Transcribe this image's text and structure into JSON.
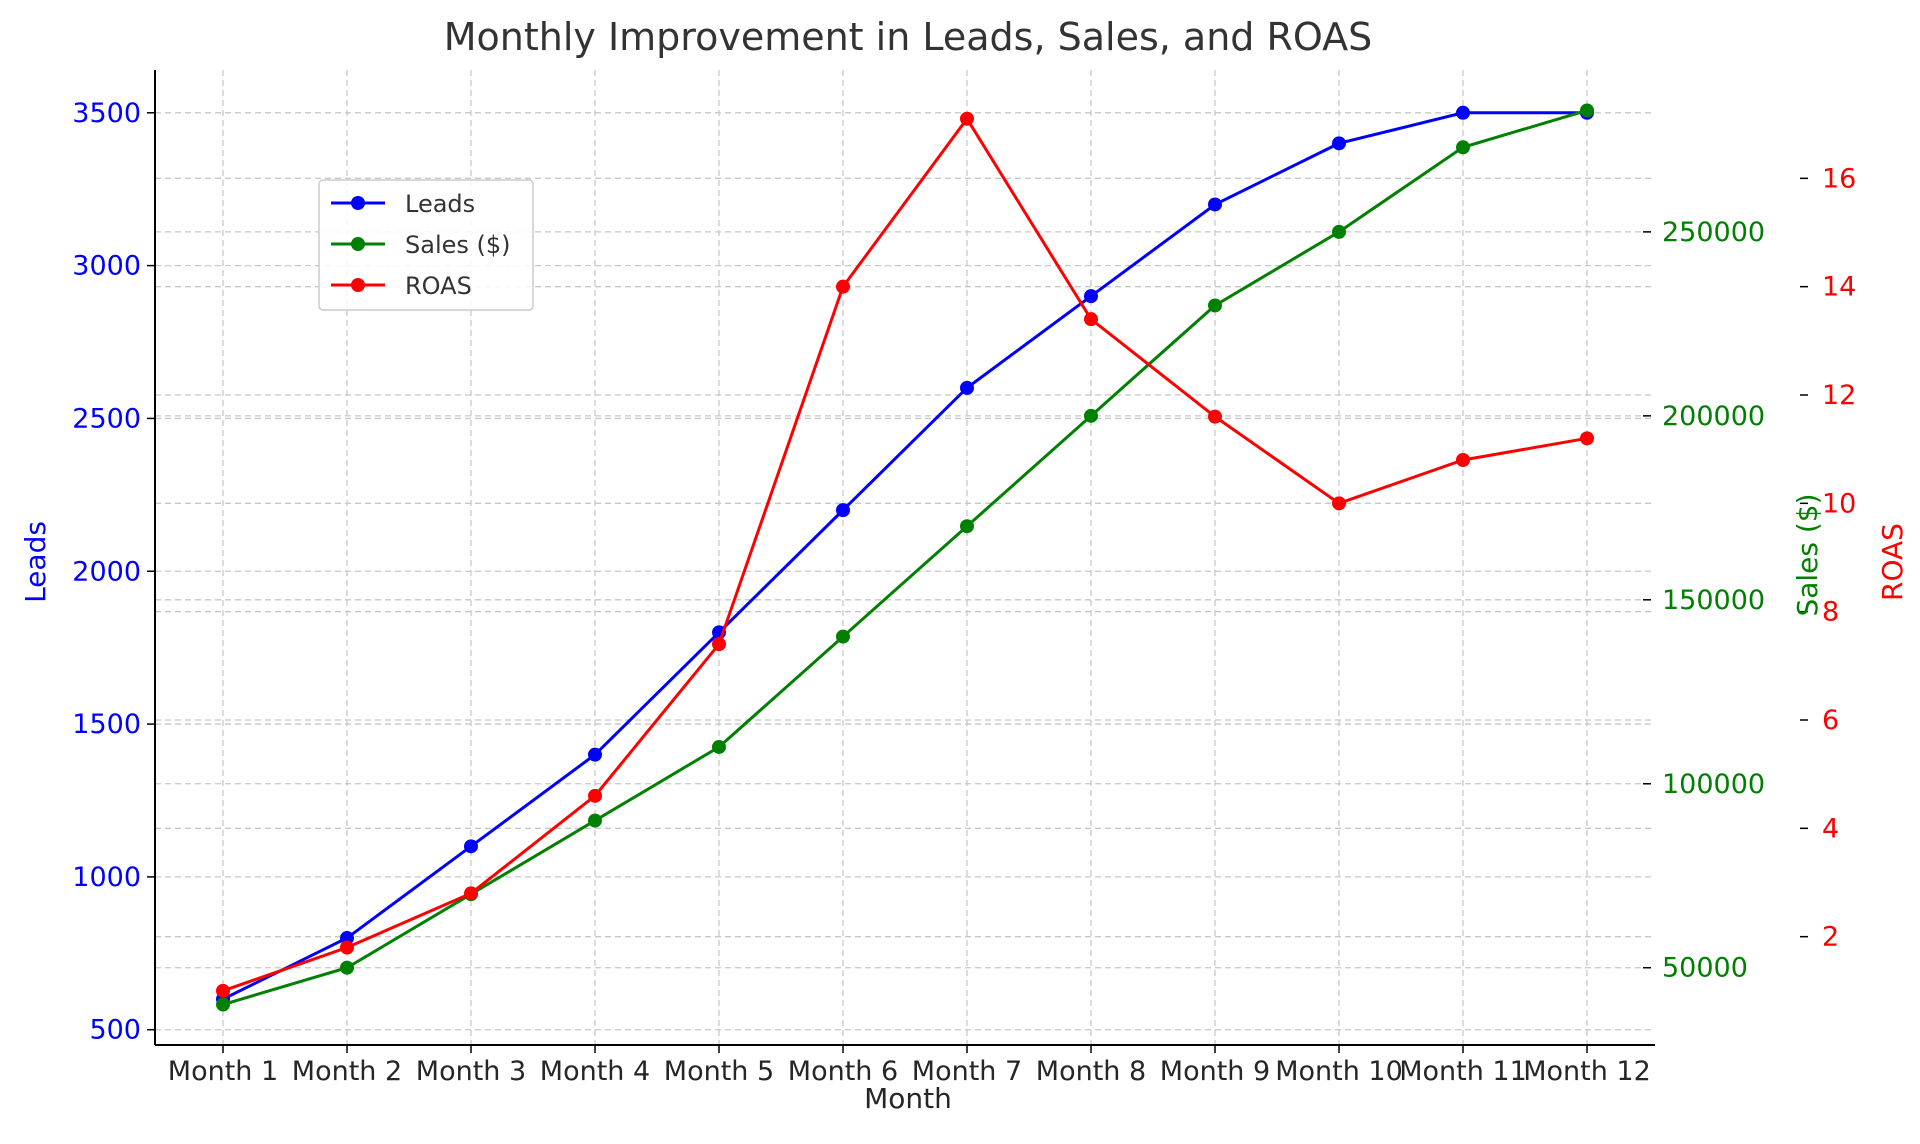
{
  "chart_data": {
    "type": "line",
    "title": "Monthly Improvement in Leads, Sales, and ROAS",
    "xlabel": "Month",
    "categories": [
      "Month 1",
      "Month 2",
      "Month 3",
      "Month 4",
      "Month 5",
      "Month 6",
      "Month 7",
      "Month 8",
      "Month 9",
      "Month 10",
      "Month 11",
      "Month 12"
    ],
    "grid": true,
    "legend_position": "upper-left",
    "axes": {
      "left": {
        "label": "Leads",
        "color": "#0000ff",
        "ticks": [
          500,
          1000,
          1500,
          2000,
          2500,
          3000,
          3500
        ],
        "range": [
          450,
          3640
        ]
      },
      "right1": {
        "label": "Sales ($)",
        "color": "#008000",
        "ticks": [
          50000,
          100000,
          150000,
          200000,
          250000
        ],
        "range": [
          29000,
          294000
        ]
      },
      "right2": {
        "label": "ROAS",
        "color": "#ff0000",
        "ticks": [
          2,
          4,
          6,
          8,
          10,
          12,
          14,
          16
        ],
        "range": [
          0.0,
          18.0
        ]
      }
    },
    "series": [
      {
        "name": "Leads",
        "axis": "left",
        "color": "#0000ff",
        "values": [
          600,
          800,
          1100,
          1400,
          1800,
          2200,
          2600,
          2900,
          3200,
          3400,
          3500,
          3500
        ]
      },
      {
        "name": "Sales ($)",
        "axis": "right1",
        "color": "#008000",
        "values": [
          40000,
          50000,
          70000,
          90000,
          110000,
          140000,
          170000,
          200000,
          230000,
          250000,
          273000,
          283000
        ]
      },
      {
        "name": "ROAS",
        "axis": "right2",
        "color": "#ff0000",
        "values": [
          1.0,
          1.8,
          2.8,
          4.6,
          7.4,
          14.0,
          17.1,
          13.4,
          11.6,
          10.0,
          10.8,
          11.2
        ]
      }
    ]
  }
}
